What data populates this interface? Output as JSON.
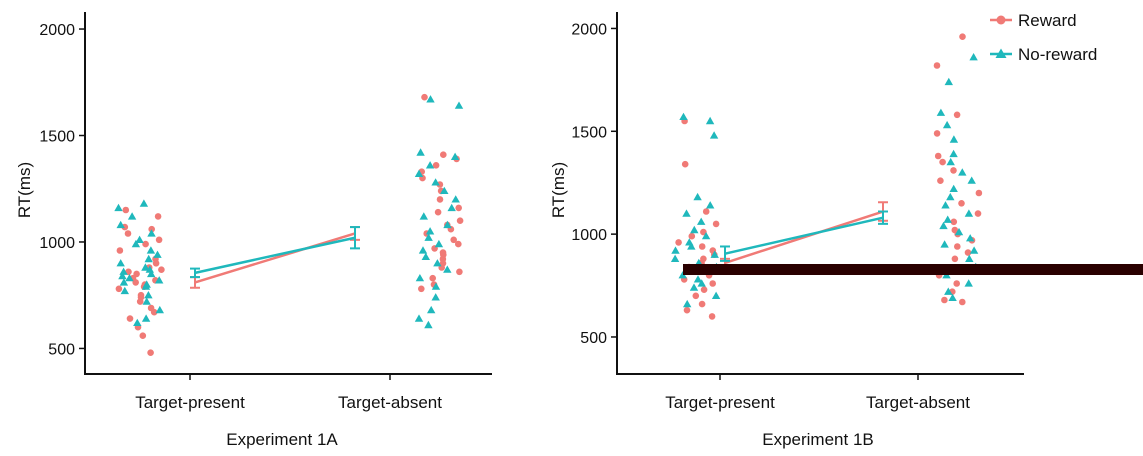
{
  "legend": {
    "position": "top-right",
    "items": [
      {
        "label": "Reward",
        "color": "#f07a76",
        "marker": "circle"
      },
      {
        "label": "No-reward",
        "color": "#1fb8bc",
        "marker": "triangle"
      }
    ]
  },
  "occluder": {
    "color": "#2a0000"
  },
  "chart_data": [
    {
      "type": "scatter",
      "title": "",
      "xlabel": "Experiment 1A",
      "ylabel": "RT(ms)",
      "ylim": [
        380,
        2080
      ],
      "yticks": [
        500,
        1000,
        1500,
        2000
      ],
      "categories": [
        "Target-present",
        "Target-absent"
      ],
      "grid": false,
      "series": [
        {
          "name": "Reward",
          "color": "#f07a76",
          "marker": "circle",
          "means": [
            810,
            1040
          ],
          "errors": [
            25,
            30
          ],
          "points": [
            [
              480,
              560,
              600,
              640,
              670,
              690,
              720,
              740,
              750,
              780,
              790,
              800,
              810,
              820,
              830,
              850,
              860,
              870,
              880,
              900,
              920,
              960,
              990,
              1010,
              1040,
              1060,
              1070,
              1120,
              1150
            ],
            [
              780,
              800,
              830,
              860,
              880,
              900,
              920,
              940,
              950,
              970,
              990,
              1010,
              1040,
              1060,
              1080,
              1100,
              1140,
              1160,
              1200,
              1240,
              1270,
              1300,
              1330,
              1360,
              1390,
              1410,
              1680
            ]
          ]
        },
        {
          "name": "No-reward",
          "color": "#1fb8bc",
          "marker": "triangle",
          "means": [
            855,
            1020
          ],
          "errors": [
            20,
            50
          ],
          "points": [
            [
              620,
              640,
              680,
              720,
              750,
              770,
              790,
              800,
              810,
              820,
              830,
              840,
              850,
              860,
              870,
              880,
              900,
              920,
              940,
              960,
              990,
              1010,
              1040,
              1080,
              1120,
              1160,
              1180
            ],
            [
              610,
              640,
              680,
              740,
              790,
              830,
              870,
              900,
              930,
              960,
              990,
              1020,
              1050,
              1080,
              1120,
              1160,
              1200,
              1240,
              1280,
              1320,
              1360,
              1400,
              1420,
              1640,
              1670
            ]
          ]
        }
      ]
    },
    {
      "type": "scatter",
      "title": "",
      "xlabel": "Experiment 1B",
      "ylabel": "RT(ms)",
      "ylim": [
        320,
        2080
      ],
      "yticks": [
        500,
        1000,
        1500,
        2000
      ],
      "categories": [
        "Target-present",
        "Target-absent"
      ],
      "grid": false,
      "series": [
        {
          "name": "Reward",
          "color": "#f07a76",
          "marker": "circle",
          "means": [
            860,
            1110
          ],
          "errors": [
            20,
            45
          ],
          "points": [
            [
              600,
              630,
              660,
              700,
              730,
              760,
              780,
              800,
              820,
              840,
              860,
              880,
              900,
              920,
              940,
              960,
              990,
              1010,
              1050,
              1110,
              1340,
              1550
            ],
            [
              670,
              680,
              720,
              760,
              800,
              840,
              880,
              910,
              940,
              970,
              1000,
              1020,
              1060,
              1100,
              1150,
              1200,
              1260,
              1310,
              1350,
              1380,
              1490,
              1580,
              1820,
              1960
            ]
          ]
        },
        {
          "name": "No-reward",
          "color": "#1fb8bc",
          "marker": "triangle",
          "means": [
            905,
            1080
          ],
          "errors": [
            35,
            30
          ],
          "points": [
            [
              660,
              700,
              740,
              760,
              780,
              800,
              820,
              840,
              860,
              880,
              900,
              920,
              940,
              960,
              990,
              1020,
              1060,
              1100,
              1140,
              1180,
              1480,
              1550,
              1570
            ],
            [
              690,
              720,
              760,
              800,
              840,
              880,
              920,
              950,
              980,
              1010,
              1040,
              1070,
              1100,
              1140,
              1180,
              1220,
              1260,
              1300,
              1350,
              1390,
              1460,
              1530,
              1590,
              1740,
              1860
            ]
          ]
        }
      ]
    }
  ]
}
